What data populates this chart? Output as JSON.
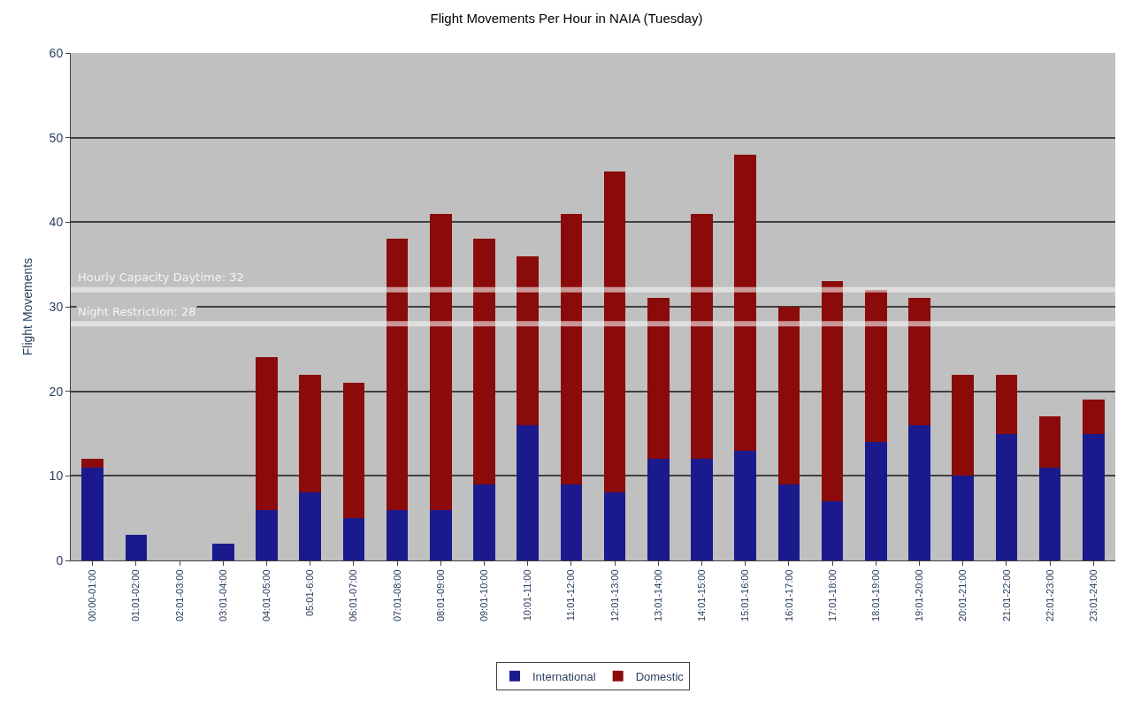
{
  "chart_data": {
    "type": "bar",
    "stacked": true,
    "title": "Flight Movements Per Hour in NAIA (Tuesday)",
    "ylabel": "Flight Movements",
    "categories": [
      "00:00-01:00",
      "01:01-02:00",
      "02:01-03:00",
      "03:01-04:00",
      "04:01-05:00",
      "05:01-6:00",
      "06:01-07:00",
      "07:01-08:00",
      "08:01-09:00",
      "09:01-10:00",
      "10:01-11:00",
      "11:01-12:00",
      "12:01-13:00",
      "13:01-14:00",
      "14:01-15:00",
      "15:01-16:00",
      "16:01-17:00",
      "17:01-18:00",
      "18:01-19:00",
      "19:01-20:00",
      "20:01-21:00",
      "21:01-22:00",
      "22:01-23:00",
      "23:01-24:00"
    ],
    "series": [
      {
        "name": "International",
        "color": "#1a1a8c",
        "values": [
          11,
          3,
          0,
          2,
          6,
          8,
          5,
          6,
          6,
          9,
          16,
          9,
          8,
          12,
          12,
          13,
          9,
          7,
          14,
          16,
          10,
          15,
          11,
          15
        ]
      },
      {
        "name": "Domestic",
        "color": "#8b0a0a",
        "values": [
          1,
          0,
          0,
          0,
          18,
          14,
          16,
          32,
          35,
          29,
          20,
          32,
          38,
          19,
          29,
          35,
          21,
          26,
          18,
          15,
          12,
          7,
          6,
          4
        ]
      }
    ],
    "ylim": [
      0,
      60
    ],
    "yticks": [
      0,
      10,
      20,
      30,
      40,
      50,
      60
    ],
    "grid": "y",
    "legend": "bottom",
    "ref_lines": [
      {
        "axis": "y",
        "value": 32,
        "label": "Hourly Capacity Daytime: 32",
        "color": "#f4f4f4"
      },
      {
        "axis": "y",
        "value": 28,
        "label": "Night Restriction: 28",
        "color": "#f4f4f4"
      }
    ]
  }
}
